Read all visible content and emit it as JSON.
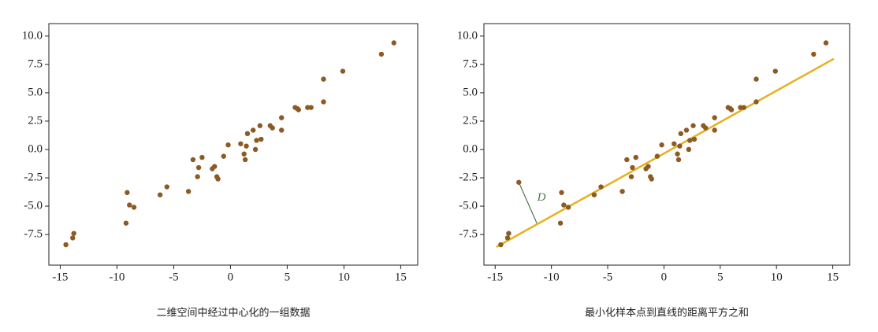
{
  "chart_data": [
    {
      "type": "scatter",
      "caption": "二维空间中经过中心化的一组数据",
      "x": [
        -14.5,
        -13.9,
        -13.8,
        -9.1,
        -8.9,
        -8.5,
        -9.2,
        -6.2,
        -5.6,
        -3.7,
        -3.3,
        -2.9,
        -2.8,
        -2.5,
        -1.6,
        -1.4,
        -1.1,
        -1.2,
        -0.6,
        -0.2,
        0.9,
        1.2,
        1.3,
        1.4,
        1.5,
        2.0,
        2.3,
        2.2,
        2.6,
        2.7,
        3.5,
        3.7,
        4.5,
        4.5,
        5.7,
        5.9,
        6.0,
        6.8,
        7.1,
        8.2,
        8.2,
        9.9,
        13.3,
        14.4
      ],
      "values": [
        -8.4,
        -7.8,
        -7.4,
        -3.8,
        -4.9,
        -5.1,
        -6.5,
        -4.0,
        -3.3,
        -3.7,
        -0.9,
        -2.4,
        -1.6,
        -0.7,
        -1.7,
        -1.5,
        -2.6,
        -2.4,
        -0.6,
        0.4,
        0.5,
        -0.4,
        -0.9,
        0.3,
        1.4,
        1.7,
        0.8,
        0.0,
        2.1,
        0.9,
        2.1,
        1.9,
        2.8,
        1.7,
        3.7,
        3.6,
        3.5,
        3.7,
        3.7,
        6.2,
        4.2,
        6.9,
        8.4,
        9.4
      ],
      "color": "#8c5a22",
      "xlim": [
        -16,
        16.5
      ],
      "ylim": [
        -10.2,
        11.1
      ],
      "xticks": [
        -15,
        -10,
        -5,
        0,
        5,
        10,
        15
      ],
      "yticks": [
        {
          "value": -7.5,
          "label": "-7.5"
        },
        {
          "value": -5,
          "label": "-5.0"
        },
        {
          "value": -2.5,
          "label": "-2.5"
        },
        {
          "value": 0,
          "label": "0.0"
        },
        {
          "value": 2.5,
          "label": "2.5"
        },
        {
          "value": 5,
          "label": "5.0"
        },
        {
          "value": 7.5,
          "label": "7.5"
        },
        {
          "value": 10,
          "label": "10.0"
        }
      ]
    },
    {
      "type": "scatter",
      "caption": "最小化样本点到直线的距离平方之和",
      "x": [
        -14.5,
        -13.9,
        -13.8,
        -12.9,
        -9.1,
        -8.9,
        -8.5,
        -9.2,
        -6.2,
        -5.6,
        -3.7,
        -3.3,
        -2.9,
        -2.8,
        -2.5,
        -1.6,
        -1.4,
        -1.1,
        -1.2,
        -0.6,
        -0.2,
        0.9,
        1.2,
        1.3,
        1.4,
        1.5,
        2.0,
        2.3,
        2.2,
        2.6,
        2.7,
        3.5,
        3.7,
        4.5,
        4.5,
        5.7,
        5.9,
        6.0,
        6.8,
        7.1,
        8.2,
        8.2,
        9.9,
        13.3,
        14.4
      ],
      "values": [
        -8.4,
        -7.8,
        -7.4,
        -2.9,
        -3.8,
        -4.9,
        -5.1,
        -6.5,
        -4.0,
        -3.3,
        -3.7,
        -0.9,
        -2.4,
        -1.6,
        -0.7,
        -1.7,
        -1.5,
        -2.6,
        -2.4,
        -0.6,
        0.4,
        0.5,
        -0.4,
        -0.9,
        0.3,
        1.4,
        1.7,
        0.8,
        0.0,
        2.1,
        0.9,
        2.1,
        1.9,
        2.8,
        1.7,
        3.7,
        3.6,
        3.5,
        3.7,
        3.7,
        6.2,
        4.2,
        6.9,
        8.4,
        9.4
      ],
      "color": "#8c5a22",
      "fit_line": {
        "x": [
          -14.9,
          15.1
        ],
        "y": [
          -8.6,
          8.0
        ],
        "color": "#e6b020"
      },
      "annotation": {
        "text": "D",
        "x": [
          -12.9,
          -11.3
        ],
        "y": [
          -2.9,
          -6.5
        ],
        "color": "#4a7a4a"
      },
      "xlim": [
        -16,
        16.5
      ],
      "ylim": [
        -10.2,
        11.1
      ],
      "xticks": [
        -15,
        -10,
        -5,
        0,
        5,
        10,
        15
      ],
      "yticks": [
        {
          "value": -7.5,
          "label": "-7.5"
        },
        {
          "value": -5,
          "label": "-5.0"
        },
        {
          "value": -2.5,
          "label": "-2.5"
        },
        {
          "value": 0,
          "label": "0.0"
        },
        {
          "value": 2.5,
          "label": "2.5"
        },
        {
          "value": 5,
          "label": "5.0"
        },
        {
          "value": 7.5,
          "label": "7.5"
        },
        {
          "value": 10,
          "label": "10.0"
        }
      ]
    }
  ]
}
